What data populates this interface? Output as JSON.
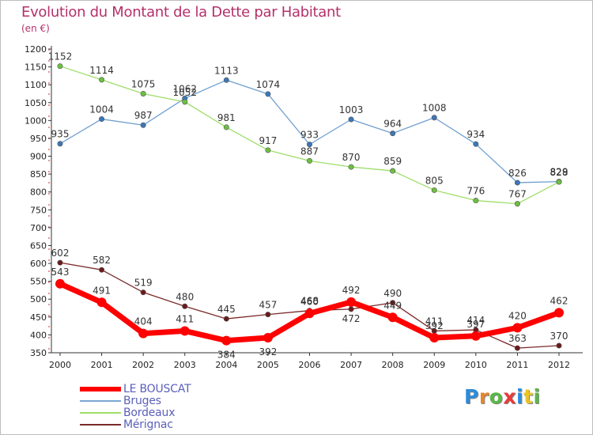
{
  "title": "Evolution du Montant de la Dette par Habitant",
  "subtitle": "(en €)",
  "brand": "Proxiti",
  "brand_letters": [
    {
      "ch": "P",
      "color": "#2e8bd8"
    },
    {
      "ch": "r",
      "color": "#e8862a"
    },
    {
      "ch": "o",
      "color": "#58b848"
    },
    {
      "ch": "x",
      "color": "#e83a3a"
    },
    {
      "ch": "i",
      "color": "#2e8bd8"
    },
    {
      "ch": "t",
      "color": "#e8c428"
    },
    {
      "ch": "i",
      "color": "#58b848"
    }
  ],
  "legend": [
    {
      "label": "LE BOUSCAT",
      "color": "#ff0000",
      "width": 6
    },
    {
      "label": "Bruges",
      "color": "#7aa7d2",
      "width": 1.5
    },
    {
      "label": "Bordeaux",
      "color": "#9ede6a",
      "width": 1.5
    },
    {
      "label": "Mérignac",
      "color": "#7a2a2a",
      "width": 1.5
    }
  ],
  "chart_data": {
    "type": "line",
    "title": "Evolution du Montant de la Dette par Habitant",
    "subtitle": "(en €)",
    "xlabel": "",
    "ylabel": "",
    "x": [
      "2000",
      "2001",
      "2002",
      "2003",
      "2004",
      "2005",
      "2006",
      "2007",
      "2008",
      "2009",
      "2010",
      "2011",
      "2012"
    ],
    "ylim": [
      350,
      1200
    ],
    "yticks": [
      350,
      400,
      450,
      500,
      550,
      600,
      650,
      700,
      750,
      800,
      850,
      900,
      950,
      1000,
      1050,
      1100,
      1150,
      1200
    ],
    "grid": false,
    "legend_position": "bottom-left",
    "series": [
      {
        "name": "Bruges",
        "color": "#6f9fcf",
        "marker": "#3a78b8",
        "line_width": 1.3,
        "values": [
          935,
          1004,
          987,
          1062,
          1113,
          1074,
          933,
          1003,
          964,
          1008,
          934,
          826,
          829
        ],
        "label_pos": [
          "a",
          "a",
          "a",
          "a",
          "a",
          "a",
          "a",
          "a",
          "a",
          "a",
          "a",
          "a",
          "a"
        ]
      },
      {
        "name": "Bordeaux",
        "color": "#9ede6a",
        "marker": "#6cc040",
        "line_width": 1.3,
        "values": [
          1152,
          1114,
          1075,
          1052,
          981,
          917,
          887,
          870,
          859,
          805,
          776,
          767,
          828
        ],
        "label_pos": [
          "a",
          "a",
          "a",
          "a",
          "a",
          "a",
          "a",
          "a",
          "a",
          "a",
          "a",
          "a",
          "a"
        ]
      },
      {
        "name": "Mérignac",
        "color": "#7a2a2a",
        "marker": "#6a1a1a",
        "line_width": 1.3,
        "values": [
          602,
          582,
          519,
          480,
          445,
          457,
          468,
          472,
          490,
          411,
          414,
          363,
          370
        ],
        "label_pos": [
          "a",
          "a",
          "a",
          "a",
          "a",
          "a",
          "a",
          "b",
          "a",
          "a",
          "a",
          "a",
          "a"
        ]
      },
      {
        "name": "LE BOUSCAT",
        "color": "#ff0000",
        "marker": "#ff0000",
        "line_width": 7,
        "values": [
          543,
          491,
          404,
          411,
          384,
          392,
          460,
          492,
          449,
          392,
          397,
          420,
          462
        ],
        "label_pos": [
          "a",
          "a",
          "a",
          "a",
          "b",
          "b",
          "a",
          "a",
          "a",
          "a",
          "a",
          "a",
          "a"
        ]
      }
    ]
  }
}
